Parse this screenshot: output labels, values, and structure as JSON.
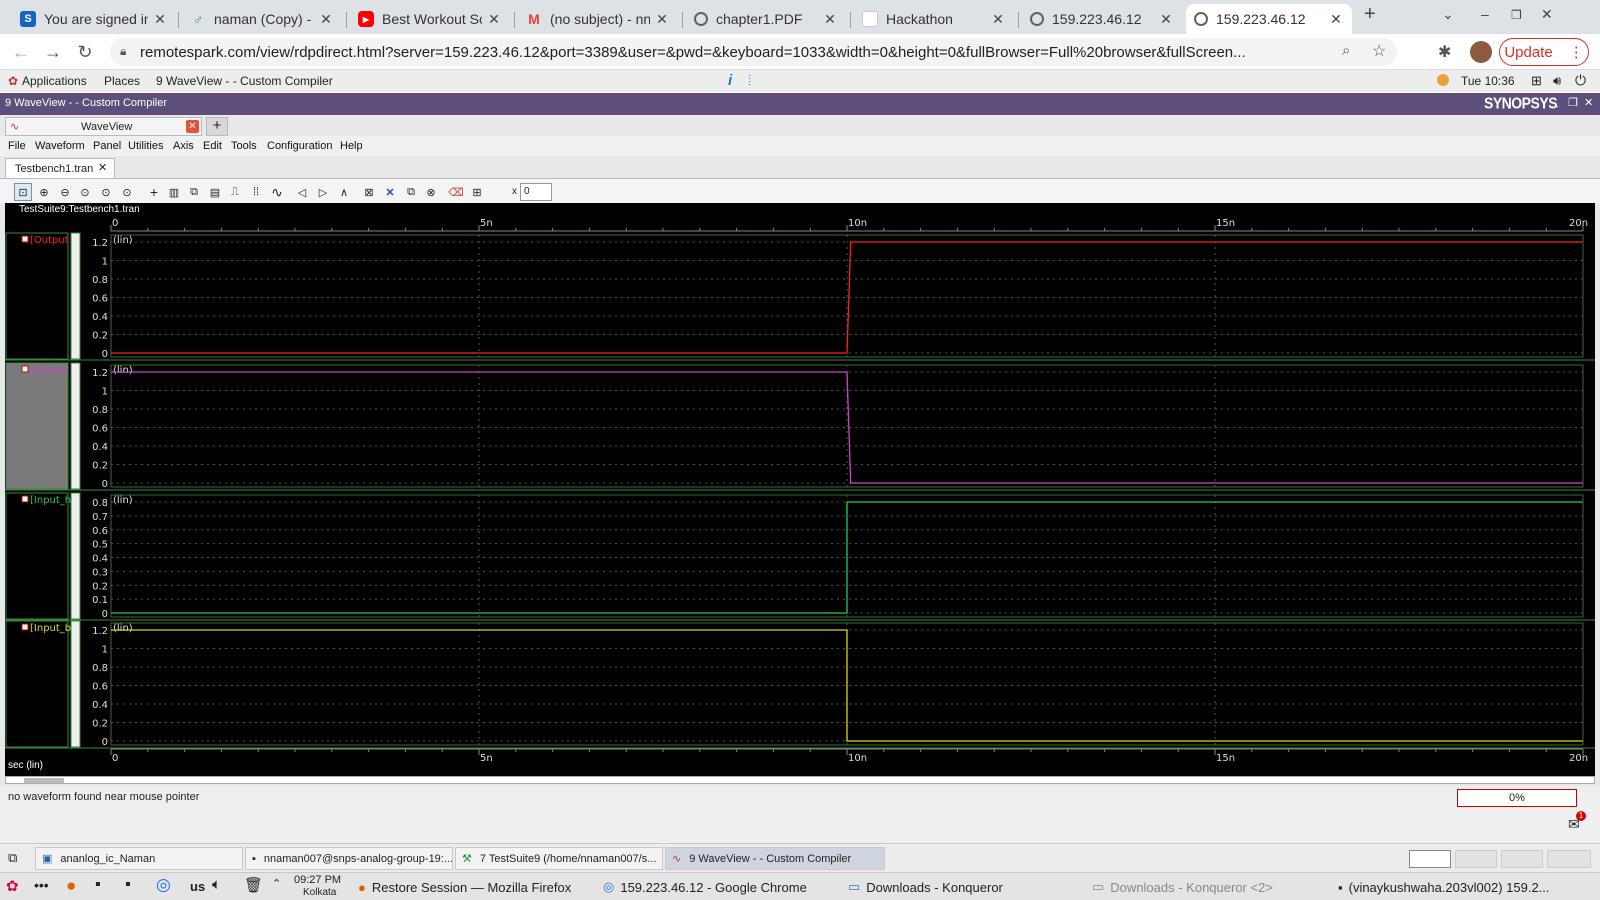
{
  "browser": {
    "tabs": [
      {
        "title": "You are signed in",
        "favicon": "s-icon",
        "color": "#1565c0"
      },
      {
        "title": "naman (Copy) - ",
        "favicon": "leaf-icon",
        "color": "#43a047"
      },
      {
        "title": "Best Workout So",
        "favicon": "youtube-icon",
        "color": "#ff0000"
      },
      {
        "title": "(no subject) - nn",
        "favicon": "gmail-icon",
        "color": "#ea4335"
      },
      {
        "title": "chapter1.PDF",
        "favicon": "globe-icon",
        "color": "#5f6368"
      },
      {
        "title": "Hackathon",
        "favicon": "doc-icon",
        "color": "#dadce0"
      },
      {
        "title": "159.223.46.12",
        "favicon": "globe-icon",
        "color": "#5f6368"
      },
      {
        "title": "159.223.46.12",
        "favicon": "globe-icon",
        "color": "#5f6368"
      }
    ],
    "url": "remotespark.com/view/rdpdirect.html?server=159.223.46.12&port=3389&user=&pwd=&keyboard=1033&width=0&height=0&fullBrowser=Full%20browser&fullScreen...",
    "update_label": "Update"
  },
  "gnome_panel": {
    "applications": "Applications",
    "places": "Places",
    "window_title": "9 WaveView - - Custom Compiler",
    "clock": "Tue 10:36"
  },
  "app": {
    "title": "9 WaveView - - Custom Compiler",
    "brand": "SYNOPSYS",
    "tab_label": "WaveView",
    "menu": [
      "File",
      "Waveform",
      "Panel",
      "Utilities",
      "Axis",
      "Edit",
      "Tools",
      "Configuration",
      "Help"
    ],
    "doc_tab": "Testbench1.tran",
    "x_field_prefix": "x",
    "x_field_value": "0",
    "plot_title": "TestSuite9:Testbench1.tran",
    "x_axis_label": "sec (lin)",
    "status_text": "no waveform found near mouse pointer",
    "progress_text": "0%"
  },
  "chart_data": {
    "type": "line",
    "x_ticks": [
      "0",
      "5n",
      "10n",
      "15n",
      "20n"
    ],
    "x_range": [
      0,
      2e-08
    ],
    "panels": [
      {
        "name": "/Output",
        "color": "#ff2020",
        "scale": "(lin)",
        "y_ticks": [
          "1.2",
          "1",
          "0.8",
          "0.6",
          "0.4",
          "0.2",
          "0"
        ],
        "ylim": [
          0,
          1.2
        ],
        "x": [
          0,
          1e-08,
          1.005e-08,
          2e-08
        ],
        "y": [
          0,
          0,
          1.2,
          1.2
        ]
      },
      {
        "name": "/Output",
        "color": "#cc44cc",
        "scale": "(lin)",
        "y_ticks": [
          "1.2",
          "1",
          "0.8",
          "0.6",
          "0.4",
          "0.2",
          "0"
        ],
        "ylim": [
          0,
          1.2
        ],
        "x": [
          0,
          1e-08,
          1.005e-08,
          2e-08
        ],
        "y": [
          1.2,
          1.2,
          0,
          0
        ]
      },
      {
        "name": "/Input_hi",
        "color": "#30c850",
        "scale": "(lin)",
        "y_ticks": [
          "0.8",
          "0.7",
          "0.6",
          "0.5",
          "0.4",
          "0.3",
          "0.2",
          "0.1",
          "0"
        ],
        "ylim": [
          0,
          0.8
        ],
        "x": [
          0,
          1e-08,
          1e-08,
          2e-08
        ],
        "y": [
          0,
          0,
          0.8,
          0.8
        ]
      },
      {
        "name": "/Input_b",
        "color": "#d8d820",
        "scale": "(lin)",
        "y_ticks": [
          "1.2",
          "1",
          "0.8",
          "0.6",
          "0.4",
          "0.2",
          "0"
        ],
        "ylim": [
          0,
          1.2
        ],
        "x": [
          0,
          1e-08,
          1e-08,
          2e-08
        ],
        "y": [
          1.2,
          1.2,
          0,
          0
        ]
      }
    ]
  },
  "taskbar_top": [
    {
      "label": "ananlog_ic_Naman"
    },
    {
      "label": "nnaman007@snps-analog-group-19:..."
    },
    {
      "label": "7 TestSuite9 (/home/nnaman007/s..."
    },
    {
      "label": "9 WaveView - - Custom Compiler"
    }
  ],
  "taskbar_bottom": {
    "keyboard": "us",
    "time": "09:27 PM",
    "city": "Kolkata",
    "items": [
      "Restore Session — Mozilla Firefox",
      "159.223.46.12 - Google Chrome",
      "Downloads - Konqueror",
      "Downloads - Konqueror <2>",
      "(vinaykushwaha.203vl002) 159.2..."
    ]
  }
}
